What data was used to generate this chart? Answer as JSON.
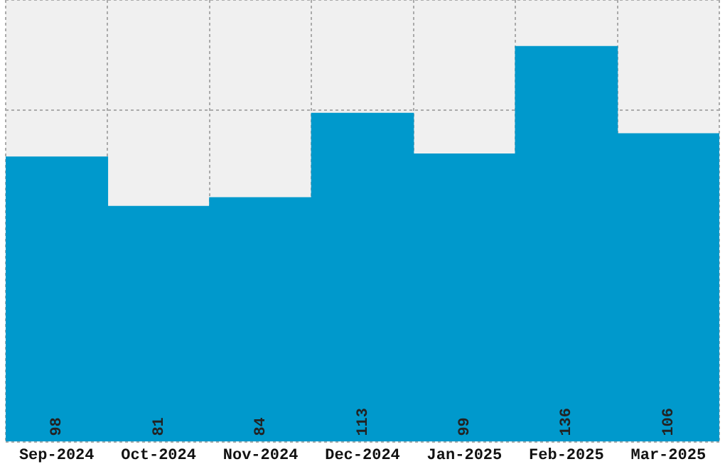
{
  "chart_data": {
    "type": "bar",
    "categories": [
      "Sep-2024",
      "Oct-2024",
      "Nov-2024",
      "Dec-2024",
      "Jan-2025",
      "Feb-2025",
      "Mar-2025"
    ],
    "values": [
      98,
      81,
      84,
      113,
      99,
      136,
      106
    ],
    "color": "#0099cc",
    "ylim": [
      0,
      152
    ],
    "tick_labels": "x",
    "grid": true,
    "data_labels": true,
    "legend": false
  }
}
